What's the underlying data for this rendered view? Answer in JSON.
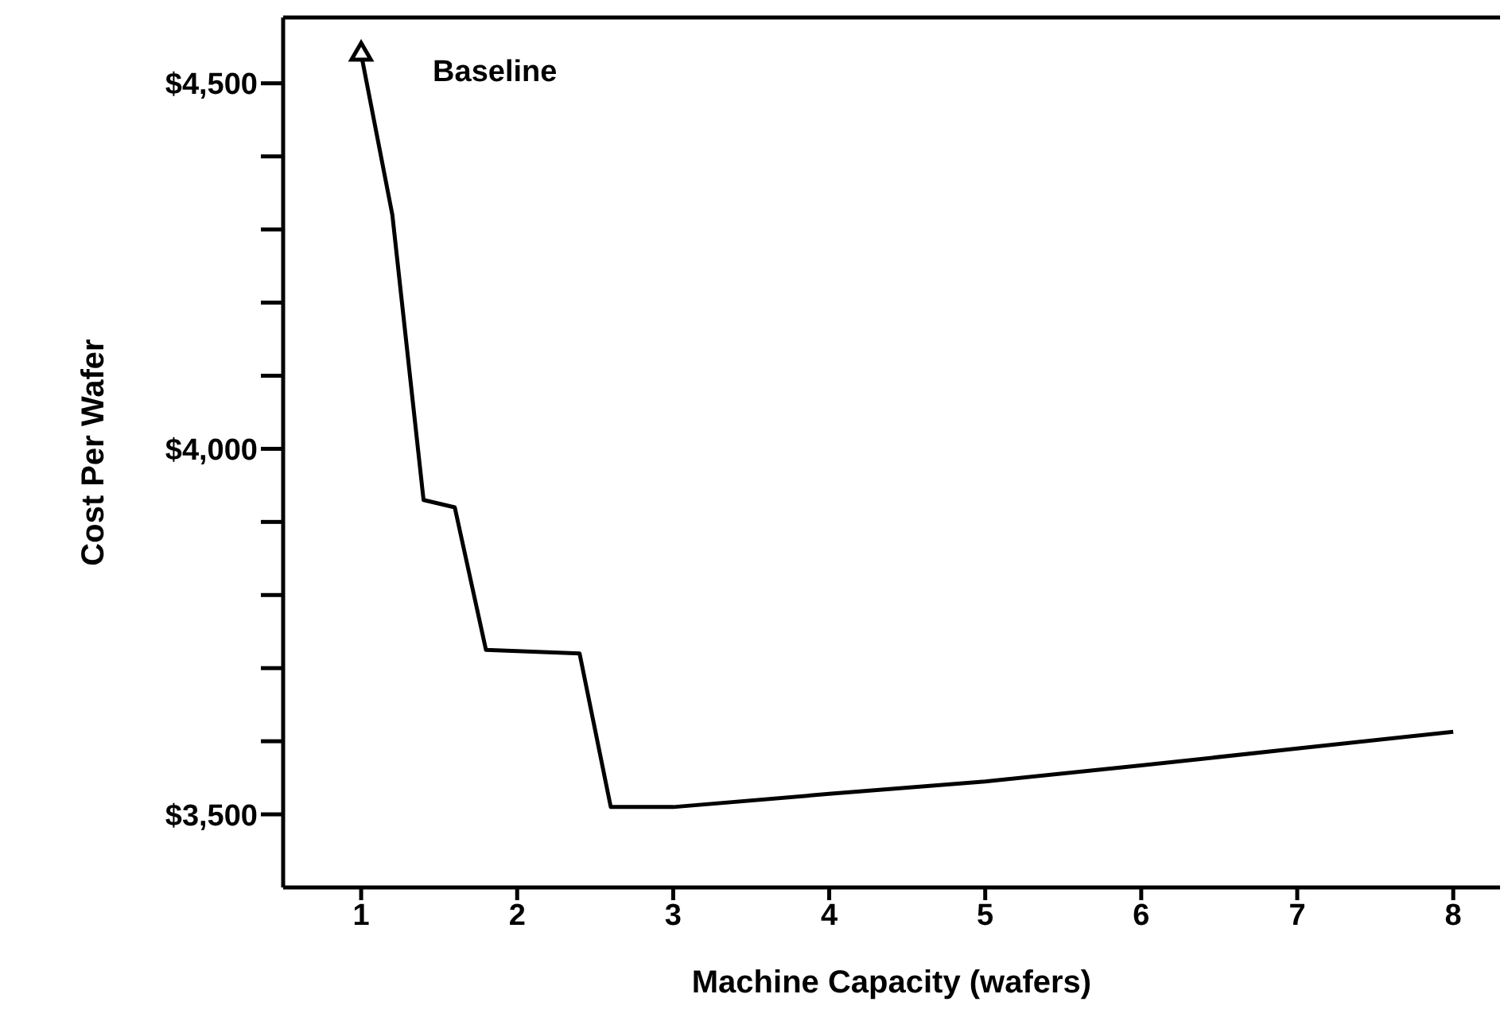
{
  "chart_data": {
    "type": "line",
    "xlabel": "Machine Capacity (wafers)",
    "ylabel": "Cost Per Wafer",
    "series": [
      {
        "color": "#000000",
        "marker": "none",
        "x": [
          1,
          1.2,
          1.4,
          1.6,
          1.8,
          2.4,
          2.6,
          3,
          4,
          5,
          6,
          7,
          8
        ],
        "values": [
          4540,
          4320,
          3930,
          3920,
          3725,
          3720,
          3510,
          3510,
          3528,
          3545,
          3567,
          3590,
          3613
        ]
      },
      {
        "type": "scatter",
        "color": "#000000",
        "marker": "triangle",
        "x": [
          1
        ],
        "values": [
          4540
        ]
      }
    ],
    "xlim": [
      0.5,
      8.3
    ],
    "xticks": [
      1,
      2,
      3,
      4,
      5,
      6,
      7,
      8
    ],
    "ylim": [
      3400,
      4590
    ],
    "yticks": [
      {
        "value": 3500,
        "label": "$3,500"
      },
      {
        "value": 3600,
        "label": null
      },
      {
        "value": 3700,
        "label": null
      },
      {
        "value": 3800,
        "label": null
      },
      {
        "value": 3900,
        "label": null
      },
      {
        "value": 4000,
        "label": "$4,000"
      },
      {
        "value": 4100,
        "label": null
      },
      {
        "value": 4200,
        "label": null
      },
      {
        "value": 4300,
        "label": null
      },
      {
        "value": 4400,
        "label": null
      },
      {
        "value": 4500,
        "label": "$4,500"
      }
    ],
    "annotations": [
      {
        "text": "Baseline",
        "x": 1,
        "y": 4540
      }
    ],
    "grid": false
  }
}
